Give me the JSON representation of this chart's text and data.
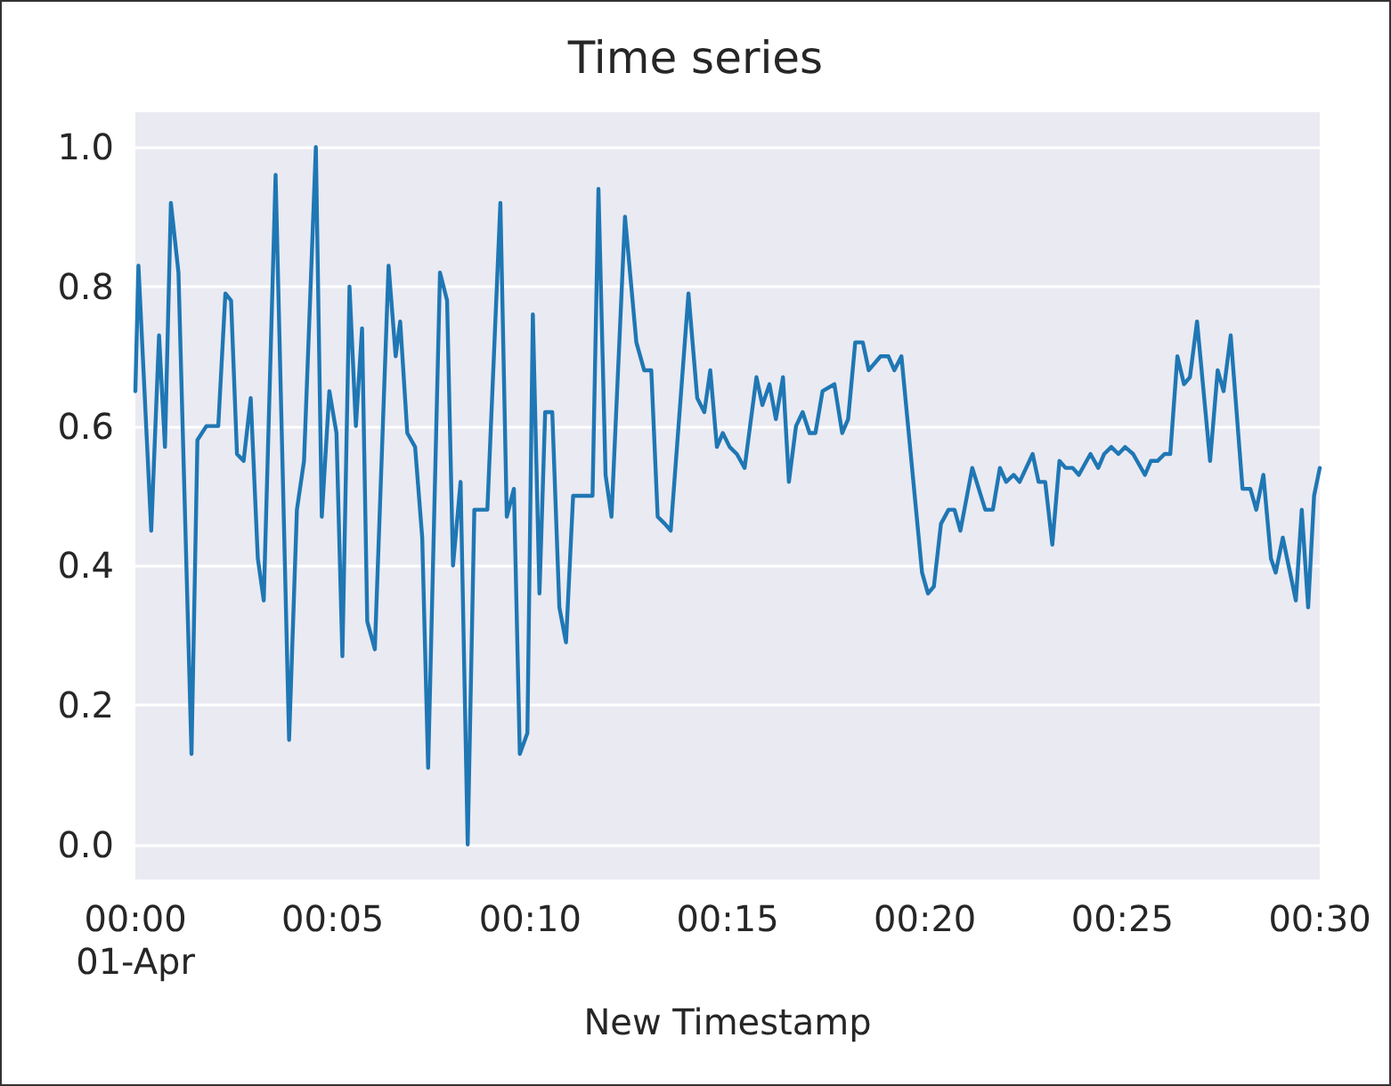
{
  "chart_data": {
    "type": "line",
    "title": "Time series",
    "xlabel": "New Timestamp",
    "xlim": [
      0,
      0.5
    ],
    "xticks": [
      {
        "value": 0,
        "label": "00:00\n01-Apr"
      },
      {
        "value": 0.083333,
        "label": "00:05"
      },
      {
        "value": 0.166667,
        "label": "00:10"
      },
      {
        "value": 0.25,
        "label": "00:15"
      },
      {
        "value": 0.333333,
        "label": "00:20"
      },
      {
        "value": 0.416667,
        "label": "00:25"
      },
      {
        "value": 0.5,
        "label": "00:30"
      }
    ],
    "ylim": [
      -0.05,
      1.05
    ],
    "yticks": [
      {
        "value": 0,
        "label": "0.0"
      },
      {
        "value": 0.2,
        "label": "0.2"
      },
      {
        "value": 0.4,
        "label": "0.4"
      },
      {
        "value": 0.6,
        "label": "0.6"
      },
      {
        "value": 0.8,
        "label": "0.8"
      },
      {
        "value": 1,
        "label": "1.0"
      }
    ],
    "grid": "y",
    "marker": "none",
    "line_style": "solid",
    "x": [
      0,
      0.0013,
      0.0067,
      0.01,
      0.0125,
      0.015,
      0.0182,
      0.0237,
      0.0262,
      0.03,
      0.035,
      0.038,
      0.0404,
      0.0429,
      0.0457,
      0.0487,
      0.0517,
      0.0542,
      0.0592,
      0.0649,
      0.0682,
      0.0712,
      0.0762,
      0.0787,
      0.0819,
      0.0849,
      0.0874,
      0.0904,
      0.0931,
      0.0957,
      0.0979,
      0.1011,
      0.1069,
      0.1099,
      0.1118,
      0.1148,
      0.1181,
      0.1211,
      0.1236,
      0.1286,
      0.1316,
      0.1341,
      0.1373,
      0.1403,
      0.1431,
      0.1486,
      0.1541,
      0.1568,
      0.1598,
      0.1623,
      0.1655,
      0.1678,
      0.1706,
      0.173,
      0.176,
      0.179,
      0.1818,
      0.1848,
      0.193,
      0.1955,
      0.1985,
      0.201,
      0.2067,
      0.2115,
      0.2148,
      0.2178,
      0.2205,
      0.2235,
      0.226,
      0.2335,
      0.2372,
      0.2402,
      0.2427,
      0.2455,
      0.248,
      0.2509,
      0.2539,
      0.2572,
      0.2622,
      0.2647,
      0.2677,
      0.2704,
      0.2734,
      0.2759,
      0.2789,
      0.2817,
      0.2846,
      0.2871,
      0.2901,
      0.2951,
      0.2984,
      0.3009,
      0.3039,
      0.3071,
      0.3096,
      0.3146,
      0.3179,
      0.3204,
      0.3234,
      0.3321,
      0.3346,
      0.3371,
      0.3401,
      0.3433,
      0.3458,
      0.3483,
      0.3533,
      0.3588,
      0.362,
      0.365,
      0.3676,
      0.3708,
      0.3733,
      0.3788,
      0.3813,
      0.3841,
      0.3871,
      0.3901,
      0.3927,
      0.3957,
      0.3983,
      0.4032,
      0.4065,
      0.409,
      0.412,
      0.415,
      0.4178,
      0.4212,
      0.4262,
      0.4287,
      0.4315,
      0.4345,
      0.4369,
      0.4399,
      0.4427,
      0.4452,
      0.4482,
      0.4537,
      0.4569,
      0.4594,
      0.4624,
      0.4674,
      0.4707,
      0.4732,
      0.4762,
      0.4794,
      0.4814,
      0.4844,
      0.4899,
      0.4924,
      0.4951,
      0.4976,
      0.5
    ],
    "series": [
      {
        "color": "#1f77b4",
        "values": [
          0.65,
          0.83,
          0.45,
          0.73,
          0.57,
          0.92,
          0.82,
          0.13,
          0.58,
          0.6,
          0.6,
          0.79,
          0.78,
          0.56,
          0.55,
          0.64,
          0.41,
          0.35,
          0.96,
          0.15,
          0.48,
          0.55,
          1.0,
          0.47,
          0.65,
          0.59,
          0.27,
          0.8,
          0.6,
          0.74,
          0.32,
          0.28,
          0.83,
          0.7,
          0.75,
          0.59,
          0.57,
          0.44,
          0.11,
          0.82,
          0.78,
          0.4,
          0.52,
          0.0,
          0.48,
          0.48,
          0.92,
          0.47,
          0.51,
          0.13,
          0.16,
          0.76,
          0.36,
          0.62,
          0.62,
          0.34,
          0.29,
          0.5,
          0.5,
          0.94,
          0.53,
          0.47,
          0.9,
          0.72,
          0.68,
          0.68,
          0.47,
          0.46,
          0.45,
          0.79,
          0.64,
          0.62,
          0.68,
          0.57,
          0.59,
          0.57,
          0.56,
          0.54,
          0.67,
          0.63,
          0.66,
          0.61,
          0.67,
          0.52,
          0.6,
          0.62,
          0.59,
          0.59,
          0.65,
          0.66,
          0.59,
          0.61,
          0.72,
          0.72,
          0.68,
          0.7,
          0.7,
          0.68,
          0.7,
          0.39,
          0.36,
          0.37,
          0.46,
          0.48,
          0.48,
          0.45,
          0.54,
          0.48,
          0.48,
          0.54,
          0.52,
          0.53,
          0.52,
          0.56,
          0.52,
          0.52,
          0.43,
          0.55,
          0.54,
          0.54,
          0.53,
          0.56,
          0.54,
          0.56,
          0.57,
          0.56,
          0.57,
          0.56,
          0.53,
          0.55,
          0.55,
          0.56,
          0.56,
          0.7,
          0.66,
          0.67,
          0.75,
          0.55,
          0.68,
          0.65,
          0.73,
          0.51,
          0.51,
          0.48,
          0.53,
          0.41,
          0.39,
          0.44,
          0.35,
          0.48,
          0.34,
          0.5,
          0.54
        ]
      }
    ]
  }
}
